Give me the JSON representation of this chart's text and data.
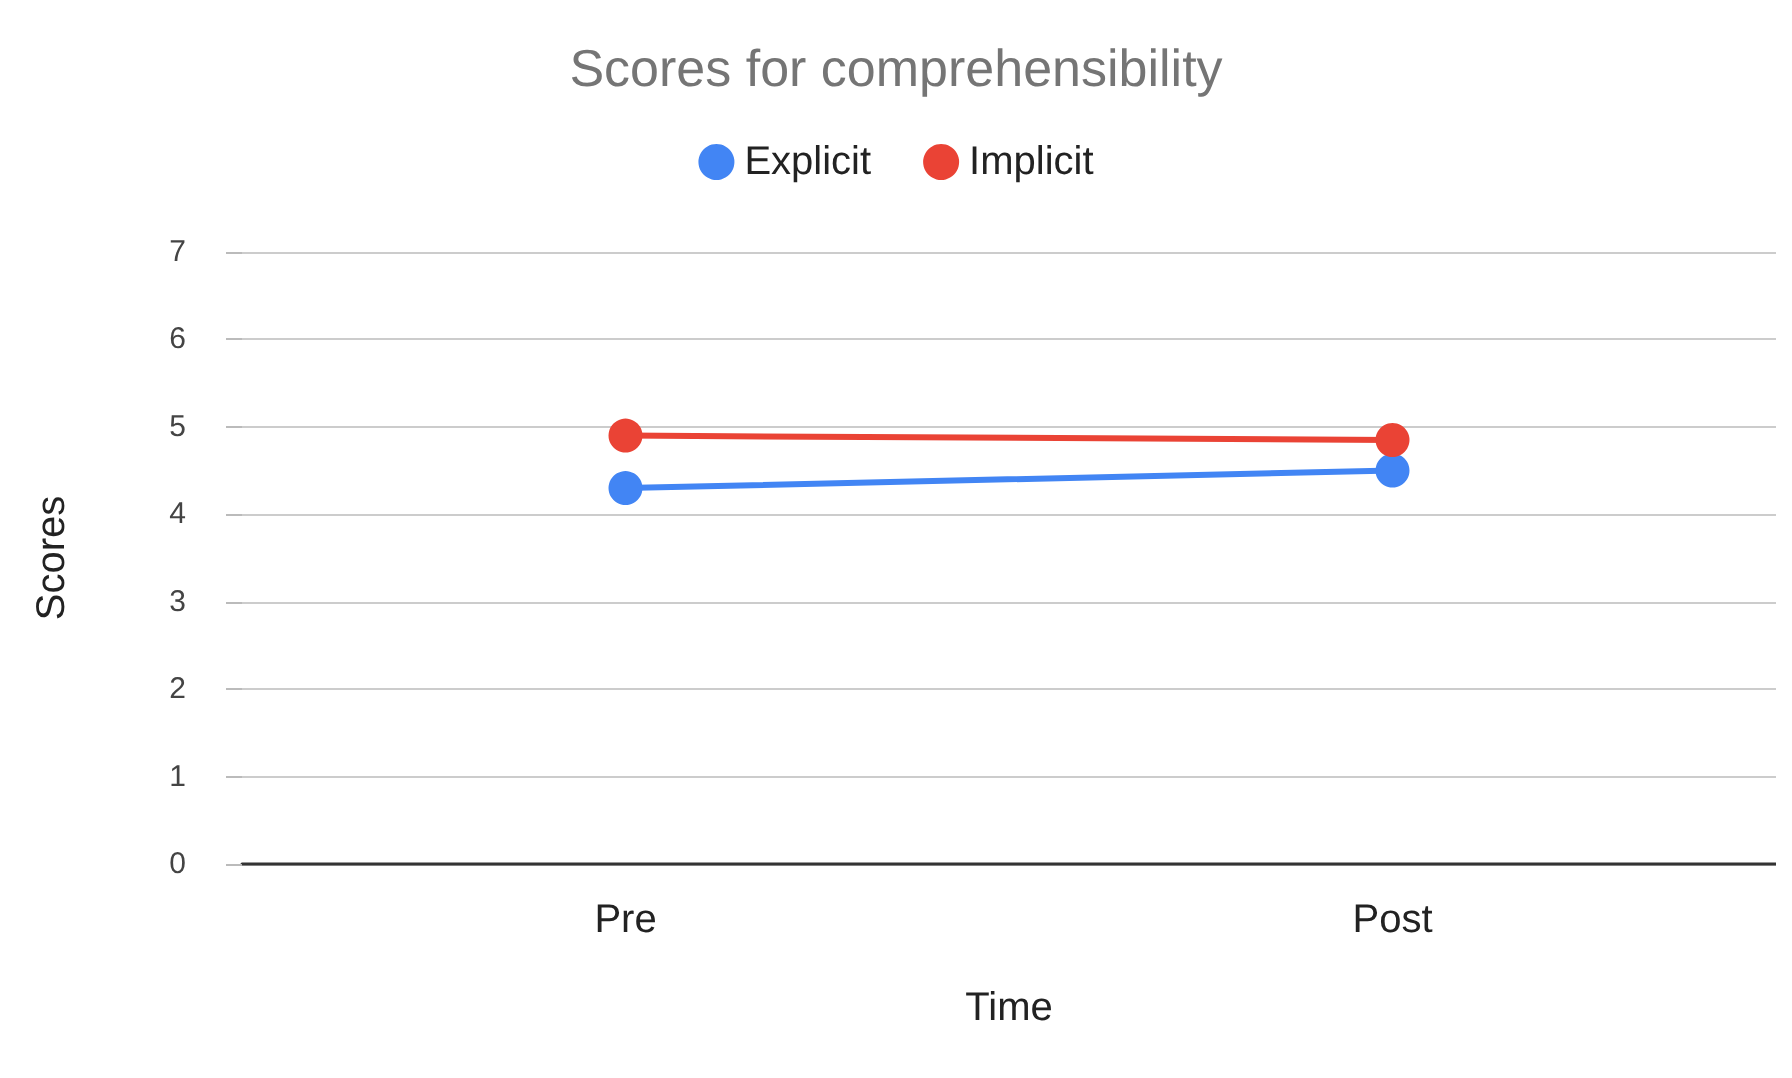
{
  "chart_data": {
    "type": "line",
    "title": "Scores for comprehensibility",
    "xlabel": "Time",
    "ylabel": "Scores",
    "categories": [
      "Pre",
      "Post"
    ],
    "series": [
      {
        "name": "Explicit",
        "color": "#4285f4",
        "values": [
          4.3,
          4.5
        ]
      },
      {
        "name": "Implicit",
        "color": "#ea4335",
        "values": [
          4.9,
          4.85
        ]
      }
    ],
    "ylim": [
      0,
      7
    ],
    "yticks": [
      0,
      1,
      2,
      3,
      4,
      5,
      6,
      7
    ],
    "grid": "y",
    "legend": "top",
    "marker": "circle",
    "line_style": "solid"
  }
}
